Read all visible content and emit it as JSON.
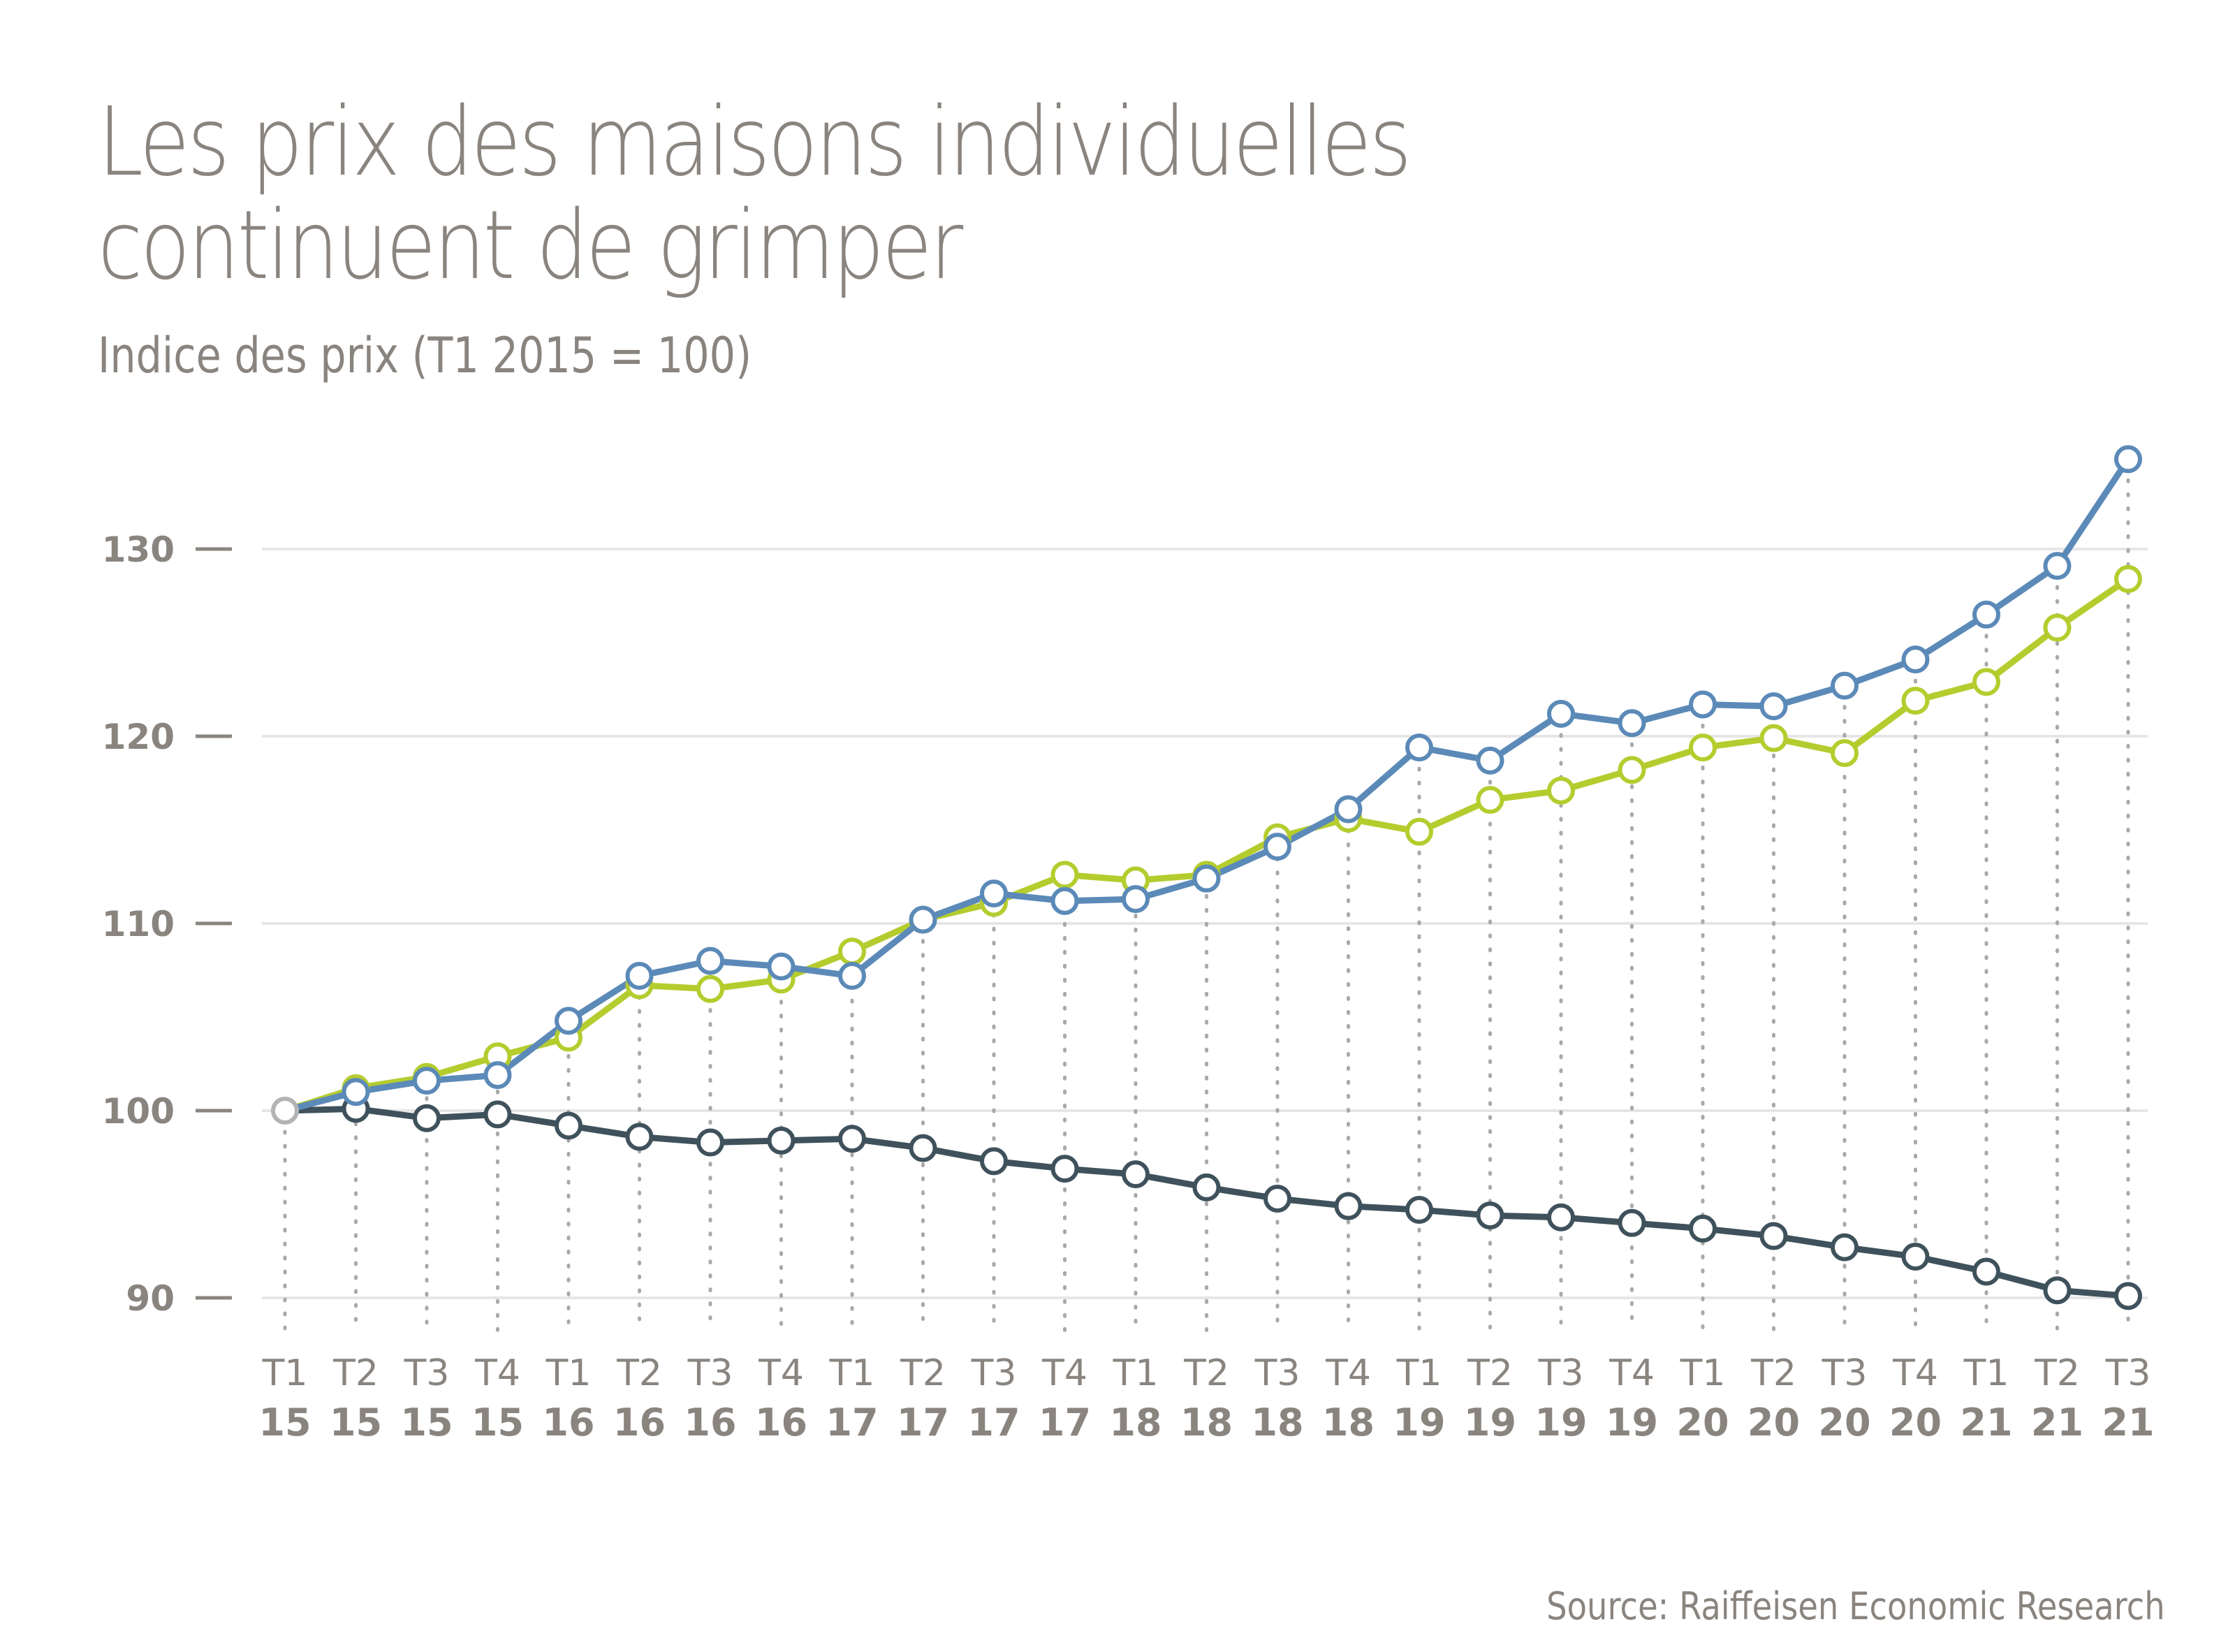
{
  "chart_data": {
    "type": "line",
    "title_line1": "Les prix des maisons individuelles",
    "title_line2": "continuent de grimper",
    "subtitle": "Indice des prix (T1 2015 = 100)",
    "source": "Source: Raiffeisen Economic Research",
    "ylim": [
      90,
      135
    ],
    "yticks": [
      90,
      100,
      110,
      120,
      130
    ],
    "grid": true,
    "x_quarters": [
      "T1",
      "T2",
      "T3",
      "T4",
      "T1",
      "T2",
      "T3",
      "T4",
      "T1",
      "T2",
      "T3",
      "T4",
      "T1",
      "T2",
      "T3",
      "T4",
      "T1",
      "T2",
      "T3",
      "T4",
      "T1",
      "T2",
      "T3",
      "T4",
      "T1",
      "T2",
      "T3"
    ],
    "x_years": [
      "15",
      "15",
      "15",
      "15",
      "16",
      "16",
      "16",
      "16",
      "17",
      "17",
      "17",
      "17",
      "18",
      "18",
      "18",
      "18",
      "19",
      "19",
      "19",
      "19",
      "20",
      "20",
      "20",
      "20",
      "21",
      "21",
      "21"
    ],
    "series": [
      {
        "name": "blue",
        "color": "#5b8ab8",
        "values": [
          100,
          101.0,
          101.6,
          101.9,
          104.8,
          107.2,
          108.0,
          107.7,
          107.2,
          110.2,
          111.6,
          111.2,
          111.3,
          112.4,
          114.1,
          116.1,
          119.4,
          118.7,
          121.2,
          120.7,
          121.7,
          121.6,
          122.7,
          124.1,
          126.5,
          129.1,
          134.8
        ]
      },
      {
        "name": "green",
        "color": "#b5cc2e",
        "values": [
          100,
          101.2,
          101.8,
          102.9,
          103.9,
          106.7,
          106.5,
          107.0,
          108.5,
          110.2,
          111.1,
          112.6,
          112.3,
          112.6,
          114.6,
          115.6,
          114.9,
          116.6,
          117.1,
          118.2,
          119.4,
          119.9,
          119.1,
          121.9,
          122.9,
          125.8,
          128.4
        ]
      },
      {
        "name": "dark",
        "color": "#3f525c",
        "values": [
          100,
          100.1,
          99.6,
          99.8,
          99.2,
          98.6,
          98.3,
          98.4,
          98.5,
          98.0,
          97.3,
          96.9,
          96.6,
          95.9,
          95.3,
          94.9,
          94.7,
          94.4,
          94.3,
          94.0,
          93.7,
          93.3,
          92.7,
          92.2,
          91.4,
          90.4,
          90.1
        ]
      }
    ],
    "first_point_color": "#b3b3b3",
    "gridline_color": "#e6e6e6",
    "text_color": "#8a847f"
  }
}
